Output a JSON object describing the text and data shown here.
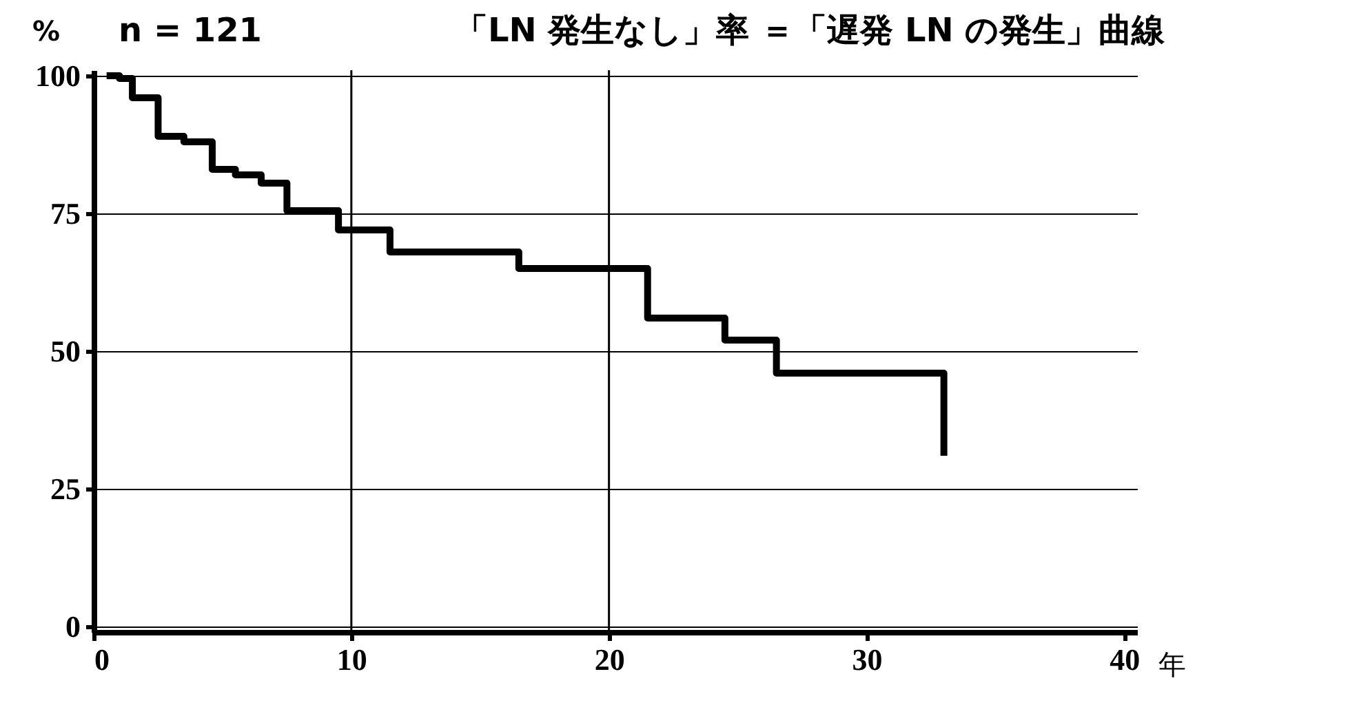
{
  "chart_data": {
    "type": "step",
    "title": "「LN 発生なし」率 ＝「遅発 LN の発生」曲線",
    "ylabel": "%",
    "xlabel": "年",
    "annotations": [
      "n = 121"
    ],
    "x": [
      0.5,
      1,
      1.5,
      2.5,
      3.5,
      4.6,
      5.5,
      6.5,
      7.5,
      9.5,
      11.5,
      16.5,
      21.5,
      24.5,
      26.5,
      33,
      33
    ],
    "series": [
      {
        "color": "#000000",
        "values": [
          100,
          99.5,
          96,
          89,
          88,
          83,
          82,
          80.5,
          75.5,
          72,
          68,
          65,
          56,
          52,
          46,
          46,
          31
        ]
      }
    ],
    "xlim": [
      0,
      40.5
    ],
    "ylim": [
      -1,
      101
    ],
    "xticks": [
      0,
      10,
      20,
      30,
      40
    ],
    "yticks": [
      0,
      25,
      50,
      75,
      100
    ],
    "ref_lines": [
      {
        "axis": "x",
        "value": 10
      },
      {
        "axis": "x",
        "value": 20
      }
    ],
    "grid": "y",
    "legend": false,
    "marker": "none",
    "line_style": "solid"
  }
}
